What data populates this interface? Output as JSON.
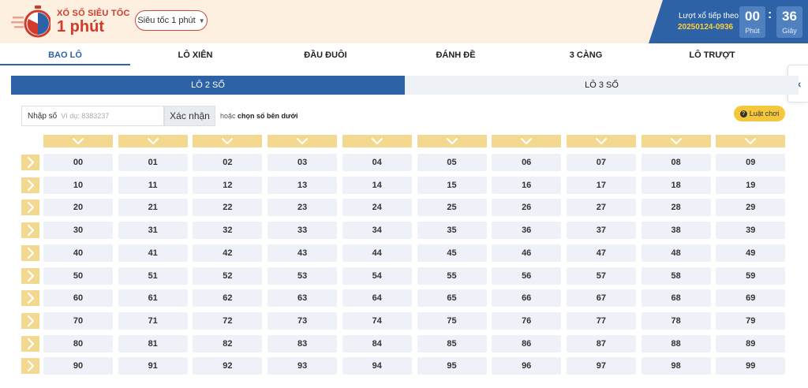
{
  "header": {
    "brand_small": "XỔ SỐ SIÊU TỐC",
    "brand_big": "1 phút",
    "speed_select": "Siêu tốc 1 phút",
    "next_draw_label": "Lượt xổ tiếp theo",
    "next_draw_id": "20250124-0936",
    "timer": {
      "minutes": "00",
      "minutes_unit": "Phút",
      "seconds": "36",
      "seconds_unit": "Giây"
    }
  },
  "tabs": [
    "BAO LÔ",
    "LÔ XIÊN",
    "ĐẦU ĐUÔI",
    "ĐÁNH ĐỀ",
    "3 CÀNG",
    "LÔ TRƯỢT"
  ],
  "active_tab": "BAO LÔ",
  "subtabs": [
    "LÔ 2 SỐ",
    "LÔ 3 SỐ"
  ],
  "active_subtab": "LÔ 2 SỐ",
  "input": {
    "label": "Nhập số",
    "placeholder": "Ví dụ: 8383237",
    "confirm_label": "Xác nhận",
    "or_prefix": "hoặc",
    "or_text": "chọn số bên dưới"
  },
  "rules_button": "Luật chơi",
  "colors": {
    "primary": "#2e62a6",
    "accent": "#d23a2a",
    "gold": "#f2d98f",
    "timer_id": "#ffcf3c"
  },
  "icons": {
    "collapse": "double-chevron-left-icon",
    "column": "chevron-down-icon",
    "row": "chevron-right-icon"
  },
  "numbers": [
    [
      "00",
      "01",
      "02",
      "03",
      "04",
      "05",
      "06",
      "07",
      "08",
      "09"
    ],
    [
      "10",
      "11",
      "12",
      "13",
      "14",
      "15",
      "16",
      "17",
      "18",
      "19"
    ],
    [
      "20",
      "21",
      "22",
      "23",
      "24",
      "25",
      "26",
      "27",
      "28",
      "29"
    ],
    [
      "30",
      "31",
      "32",
      "33",
      "34",
      "35",
      "36",
      "37",
      "38",
      "39"
    ],
    [
      "40",
      "41",
      "42",
      "43",
      "44",
      "45",
      "46",
      "47",
      "48",
      "49"
    ],
    [
      "50",
      "51",
      "52",
      "53",
      "54",
      "55",
      "56",
      "57",
      "58",
      "59"
    ],
    [
      "60",
      "61",
      "62",
      "63",
      "64",
      "65",
      "66",
      "67",
      "68",
      "69"
    ],
    [
      "70",
      "71",
      "72",
      "73",
      "74",
      "75",
      "76",
      "77",
      "78",
      "79"
    ],
    [
      "80",
      "81",
      "82",
      "83",
      "84",
      "85",
      "86",
      "87",
      "88",
      "89"
    ],
    [
      "90",
      "91",
      "92",
      "93",
      "94",
      "95",
      "96",
      "97",
      "98",
      "99"
    ]
  ]
}
